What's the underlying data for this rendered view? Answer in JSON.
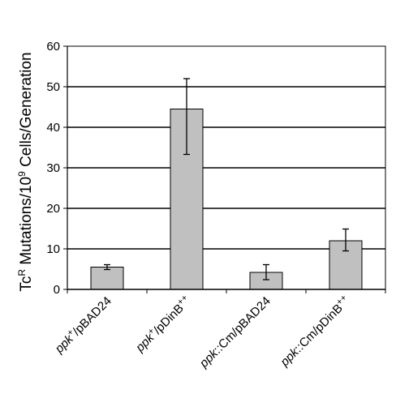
{
  "chart_data": {
    "type": "bar",
    "ylabel": {
      "prefix": "Tc",
      "prefix_sup": "R",
      "middle": " Mutations/10",
      "middle_sup": "9",
      "suffix": " Cells/Generation"
    },
    "ylim": [
      0,
      60
    ],
    "yticks": [
      0,
      10,
      20,
      30,
      40,
      50,
      60
    ],
    "grid": true,
    "bar_color": "#c0c0c0",
    "categories": [
      {
        "italic": "ppk",
        "sup": "+",
        "rest": "/pBAD24",
        "rest_sup": ""
      },
      {
        "italic": "ppk",
        "sup": "+",
        "rest": "/pDinB",
        "rest_sup": "++"
      },
      {
        "italic": "ppk",
        "sup": "",
        "rest": "::Cm/pBAD24",
        "rest_sup": ""
      },
      {
        "italic": "ppk",
        "sup": "",
        "rest": "::Cm/pDinB",
        "rest_sup": "++"
      }
    ],
    "values": [
      5.5,
      44.5,
      4.2,
      12.0
    ],
    "errors_low": [
      4.9,
      33.3,
      2.4,
      9.5
    ],
    "errors_high": [
      6.1,
      52.0,
      6.1,
      14.9
    ]
  }
}
